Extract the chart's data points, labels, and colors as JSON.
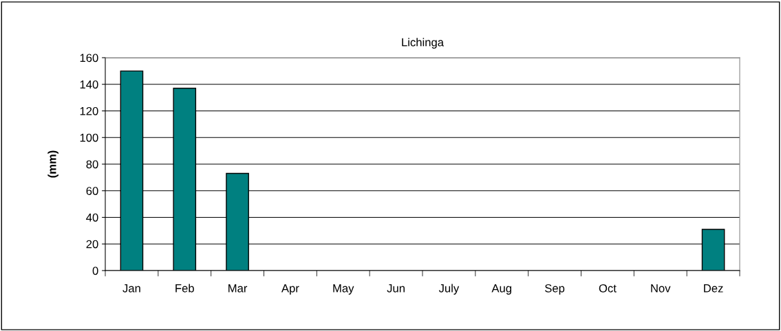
{
  "chart_data": {
    "type": "bar",
    "title": "Lichinga",
    "ylabel": "(mm)",
    "categories": [
      "Jan",
      "Feb",
      "Mar",
      "Apr",
      "May",
      "Jun",
      "July",
      "Aug",
      "Sep",
      "Oct",
      "Nov",
      "Dez"
    ],
    "values": [
      150,
      137,
      73,
      0,
      0,
      0,
      0,
      0,
      0,
      0,
      0,
      31
    ],
    "color": "#008080",
    "ylim": [
      0,
      160
    ],
    "yticks": [
      0,
      20,
      40,
      60,
      80,
      100,
      120,
      140,
      160
    ],
    "grid": "y"
  }
}
